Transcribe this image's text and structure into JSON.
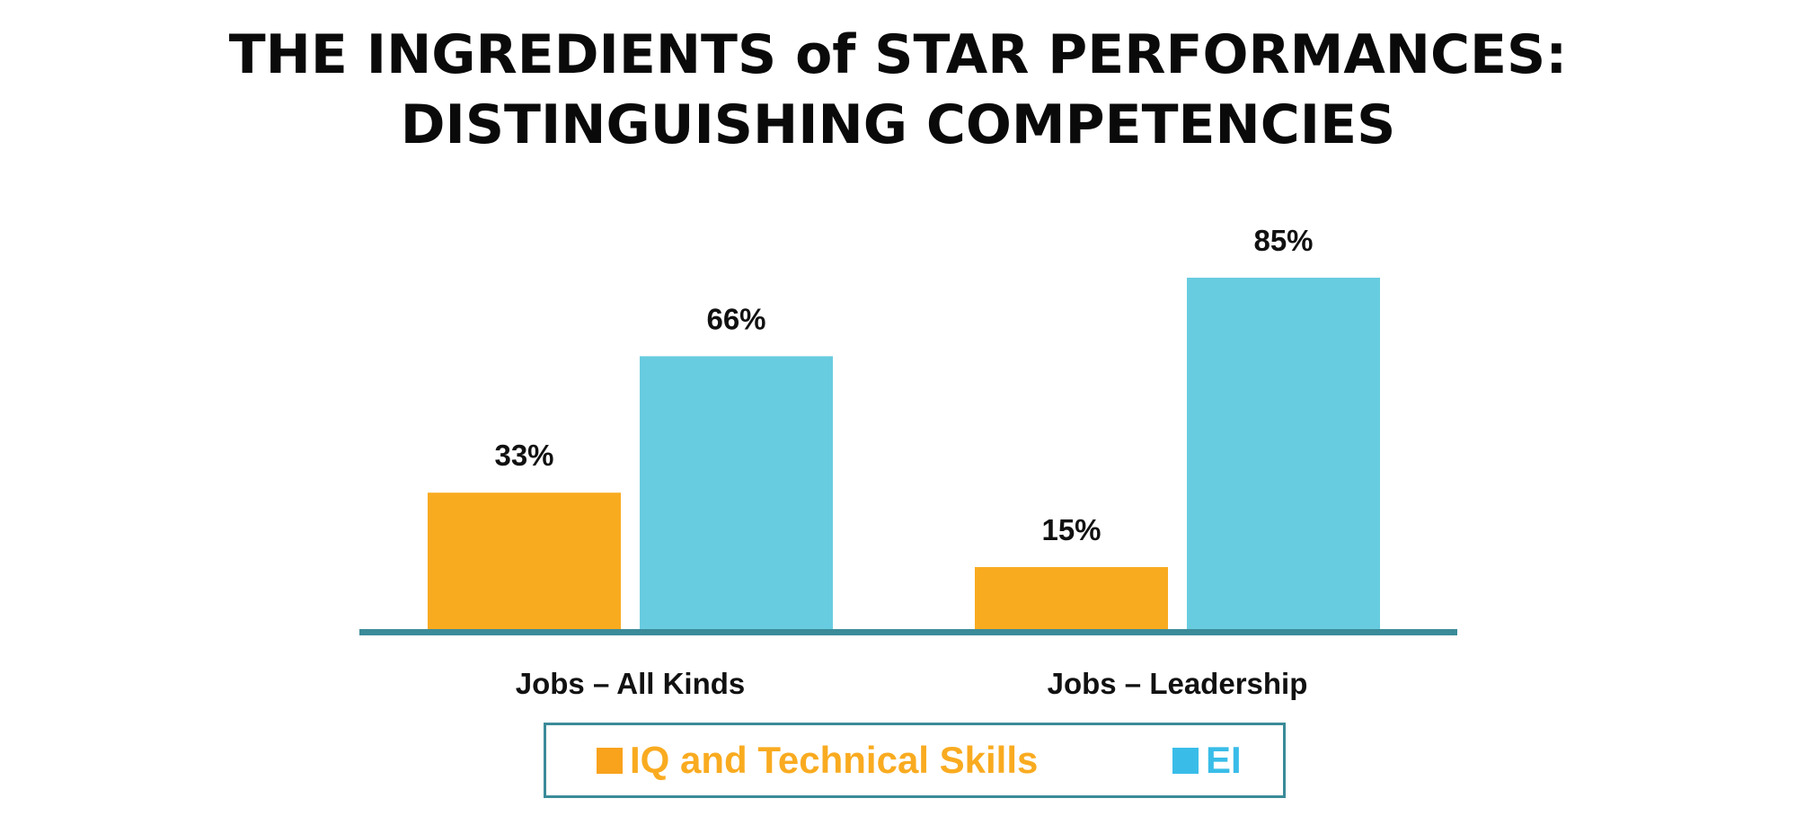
{
  "chart_data": {
    "type": "bar",
    "title": "THE INGREDIENTS of STAR PERFORMANCES: DISTINGUISHING COMPETENCIES",
    "title_lines": [
      "THE INGREDIENTS of STAR PERFORMANCES:",
      "DISTINGUISHING COMPETENCIES"
    ],
    "categories": [
      "Jobs – All Kinds",
      "Jobs – Leadership"
    ],
    "series": [
      {
        "name": "IQ and Technical Skills",
        "values": [
          33,
          15
        ],
        "labels": [
          "33%",
          "15%"
        ],
        "color": "#f9ab20"
      },
      {
        "name": "EI",
        "values": [
          66,
          85
        ],
        "labels": [
          "66%",
          "85%"
        ],
        "color": "#68cce0"
      }
    ],
    "ylim": [
      0,
      100
    ],
    "xlabel": "",
    "ylabel": "",
    "grid": false,
    "legend_position": "bottom",
    "colors": {
      "baseline": "#3b8b99",
      "legend_border": "#3b8b99",
      "legend_swatch_ei": "#39bde8",
      "legend_swatch_iq": "#f9a21c",
      "legend_text_iq": "#f9ab20",
      "legend_text_ei": "#39bde8",
      "text": "#111111"
    }
  }
}
